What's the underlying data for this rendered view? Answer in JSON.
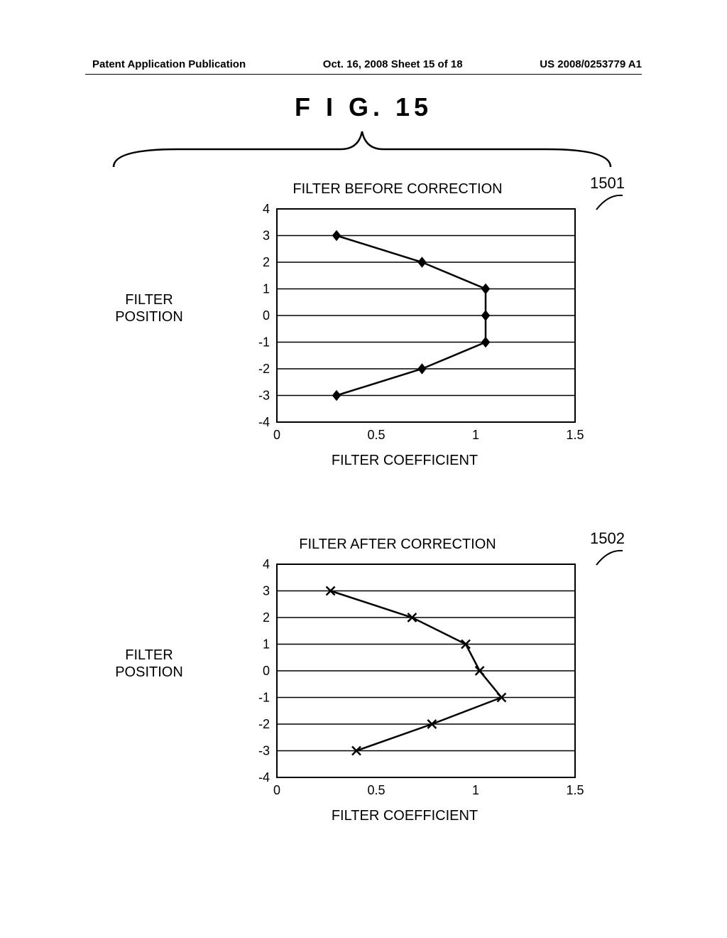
{
  "header": {
    "left": "Patent Application Publication",
    "center": "Oct. 16, 2008  Sheet 15 of 18",
    "right": "US 2008/0253779 A1"
  },
  "figure_title": "F I G.  15",
  "chart1": {
    "callout": "1501",
    "title": "FILTER BEFORE CORRECTION",
    "ylabel": "FILTER\nPOSITION",
    "xlabel": "FILTER COEFFICIENT",
    "type": "line",
    "marker": "diamond",
    "marker_size": 10,
    "line_color": "#000000",
    "line_width": 2.5,
    "background_color": "#ffffff",
    "border_color": "#000000",
    "grid_color": "#000000",
    "font_size_title": 20,
    "font_size_label": 20,
    "font_size_tick": 18,
    "xlim": [
      0,
      1.5
    ],
    "ylim": [
      -4,
      4
    ],
    "xticks": [
      0,
      0.5,
      1,
      1.5
    ],
    "yticks": [
      -4,
      -3,
      -2,
      -1,
      0,
      1,
      2,
      3,
      4
    ],
    "data": [
      {
        "x": 0.3,
        "y": -3
      },
      {
        "x": 0.73,
        "y": -2
      },
      {
        "x": 1.05,
        "y": -1
      },
      {
        "x": 1.05,
        "y": 0
      },
      {
        "x": 1.05,
        "y": 1
      },
      {
        "x": 0.73,
        "y": 2
      },
      {
        "x": 0.3,
        "y": 3
      }
    ]
  },
  "chart2": {
    "callout": "1502",
    "title": "FILTER AFTER CORRECTION",
    "ylabel": "FILTER\nPOSITION",
    "xlabel": "FILTER COEFFICIENT",
    "type": "line",
    "marker": "x",
    "marker_size": 12,
    "line_color": "#000000",
    "line_width": 2.5,
    "background_color": "#ffffff",
    "border_color": "#000000",
    "grid_color": "#000000",
    "font_size_title": 20,
    "font_size_label": 20,
    "font_size_tick": 18,
    "xlim": [
      0,
      1.5
    ],
    "ylim": [
      -4,
      4
    ],
    "xticks": [
      0,
      0.5,
      1,
      1.5
    ],
    "yticks": [
      -4,
      -3,
      -2,
      -1,
      0,
      1,
      2,
      3,
      4
    ],
    "data": [
      {
        "x": 0.4,
        "y": -3
      },
      {
        "x": 0.78,
        "y": -2
      },
      {
        "x": 1.13,
        "y": -1
      },
      {
        "x": 1.02,
        "y": 0
      },
      {
        "x": 0.95,
        "y": 1
      },
      {
        "x": 0.68,
        "y": 2
      },
      {
        "x": 0.27,
        "y": 3
      }
    ]
  }
}
